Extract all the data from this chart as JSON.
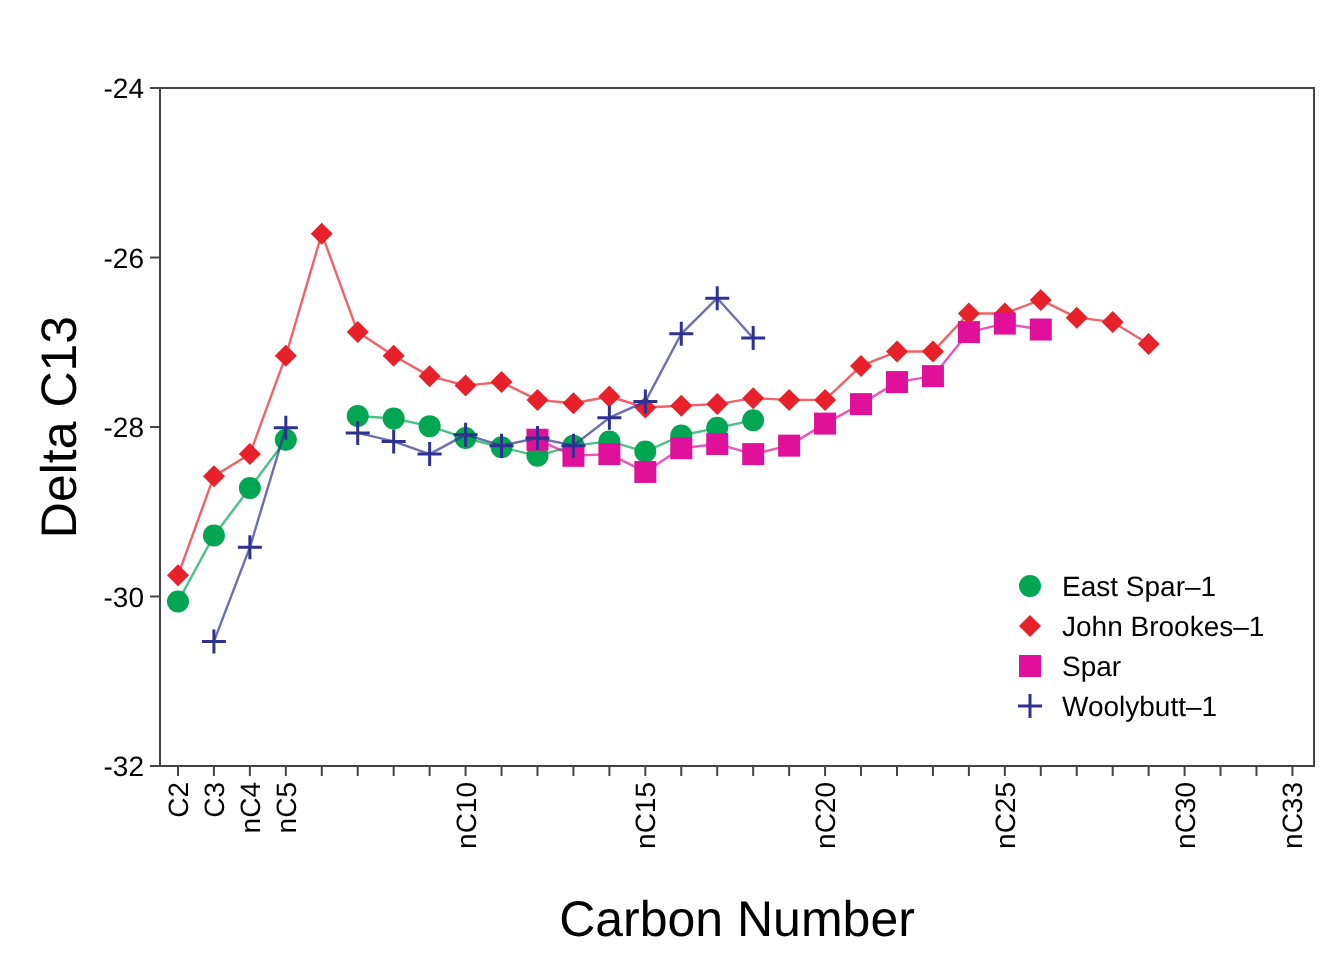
{
  "chart_data": {
    "type": "line",
    "xlabel": "Carbon Number",
    "ylabel": "Delta C13",
    "categories": [
      "C2",
      "C3",
      "nC4",
      "nC5",
      null,
      null,
      null,
      null,
      "nC10",
      null,
      null,
      null,
      null,
      "nC15",
      null,
      null,
      null,
      null,
      "nC20",
      null,
      null,
      null,
      null,
      "nC25",
      null,
      null,
      null,
      null,
      "nC30",
      null,
      null,
      "nC33"
    ],
    "series": [
      {
        "name": "East Spar–1",
        "color": "#00a651",
        "marker": "circle",
        "values": [
          -30.06,
          -29.28,
          -28.72,
          -28.15,
          null,
          -27.87,
          -27.9,
          -27.99,
          -28.13,
          -28.24,
          -28.34,
          -28.22,
          -28.17,
          -28.29,
          -28.1,
          -28.01,
          -27.92,
          null,
          null,
          null,
          null,
          null,
          null,
          null,
          null,
          null,
          null,
          null,
          null,
          null,
          null,
          null
        ]
      },
      {
        "name": "John Brookes–1",
        "color": "#e8202a",
        "marker": "diamond",
        "values": [
          -29.75,
          -28.58,
          -28.32,
          -27.16,
          -25.72,
          -26.88,
          -27.16,
          -27.4,
          -27.51,
          -27.47,
          -27.68,
          -27.72,
          -27.64,
          -27.77,
          -27.75,
          -27.73,
          -27.66,
          -27.68,
          -27.68,
          -27.28,
          -27.11,
          -27.11,
          -26.66,
          -26.66,
          -26.5,
          -26.71,
          -26.76,
          -27.02,
          null,
          null,
          null,
          null
        ]
      },
      {
        "name": "Spar",
        "color": "#e0109a",
        "marker": "square",
        "values": [
          null,
          null,
          null,
          null,
          null,
          null,
          null,
          null,
          null,
          null,
          -28.15,
          -28.34,
          -28.32,
          -28.53,
          -28.25,
          -28.2,
          -28.32,
          -28.22,
          -27.96,
          -27.73,
          -27.47,
          -27.4,
          -26.88,
          -26.78,
          -26.85,
          null,
          null,
          null,
          null,
          null,
          null,
          null
        ]
      },
      {
        "name": "Woolybutt–1",
        "color": "#2e3192",
        "marker": "cross",
        "values": [
          null,
          -30.53,
          -29.42,
          -28.01,
          null,
          -28.07,
          -28.17,
          -28.32,
          -28.09,
          -28.22,
          -28.13,
          -28.22,
          -27.89,
          -27.7,
          -26.9,
          -26.48,
          -26.95,
          null,
          null,
          null,
          null,
          null,
          null,
          null,
          null,
          null,
          null,
          null,
          null,
          null,
          null,
          null
        ]
      }
    ],
    "ylim": [
      -32,
      -24
    ],
    "yticks": [
      -32,
      -30,
      -28,
      -26,
      -24
    ],
    "grid": false,
    "legend": "bottom right"
  }
}
